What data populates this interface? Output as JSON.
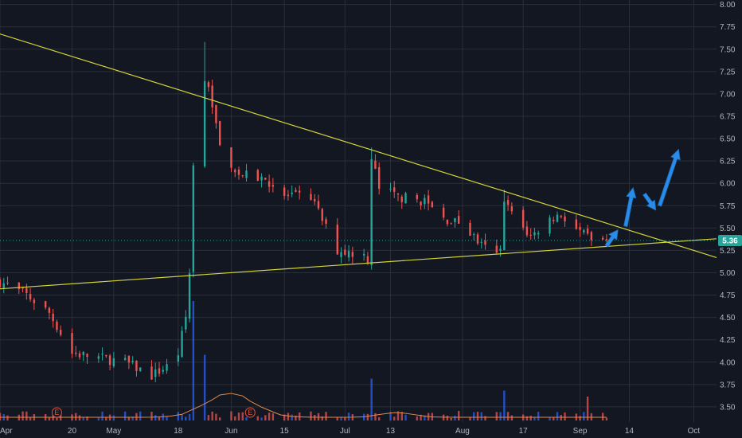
{
  "chart_data": {
    "type": "candlestick",
    "colors": {
      "background": "#131722",
      "grid": "#2a2e39",
      "up": "#26a69a",
      "down": "#ef5350",
      "volume_up": "#2962ff",
      "volume_down": "#ef5350",
      "trendline": "#d4d43a",
      "arrow": "#2a8ce8",
      "last_price": "#26a69a",
      "volume_ma": "#e08a4a"
    },
    "y_axis": {
      "ticks": [
        "8.00",
        "7.75",
        "7.50",
        "7.25",
        "7.00",
        "6.75",
        "6.50",
        "6.25",
        "6.00",
        "5.75",
        "5.50",
        "5.25",
        "5.00",
        "4.75",
        "4.50",
        "4.25",
        "4.00",
        "3.75",
        "3.50"
      ],
      "ylim": [
        3.33,
        8.05
      ]
    },
    "x_axis": {
      "ticks": [
        {
          "label": "Apr",
          "date": "2020-04-01"
        },
        {
          "label": "20",
          "date": "2020-04-20"
        },
        {
          "label": "May",
          "date": "2020-05-01"
        },
        {
          "label": "18",
          "date": "2020-05-18"
        },
        {
          "label": "Jun",
          "date": "2020-06-01"
        },
        {
          "label": "15",
          "date": "2020-06-15"
        },
        {
          "label": "Jul",
          "date": "2020-07-01"
        },
        {
          "label": "13",
          "date": "2020-07-13"
        },
        {
          "label": "Aug",
          "date": "2020-08-01"
        },
        {
          "label": "17",
          "date": "2020-08-17"
        },
        {
          "label": "Sep",
          "date": "2020-09-01"
        },
        {
          "label": "14",
          "date": "2020-09-14"
        },
        {
          "label": "Oct",
          "date": "2020-10-01"
        }
      ],
      "xlim": [
        "2020-04-01",
        "2020-10-07"
      ]
    },
    "last_price": "5.36",
    "trendlines": [
      {
        "name": "resistance",
        "points": [
          [
            "2020-04-01",
            7.67
          ],
          [
            "2020-10-07",
            5.17
          ]
        ]
      },
      {
        "name": "support",
        "points": [
          [
            "2020-04-01",
            4.82
          ],
          [
            "2020-10-07",
            5.38
          ]
        ]
      }
    ],
    "keypoints": [
      [
        "2020-04-01",
        4.9
      ],
      [
        "2020-04-08",
        4.75
      ],
      [
        "2020-04-14",
        4.55
      ],
      [
        "2020-04-20",
        4.1
      ],
      [
        "2020-04-27",
        4.05
      ],
      [
        "2020-05-04",
        4.0
      ],
      [
        "2020-05-11",
        3.85
      ],
      [
        "2020-05-15",
        3.95
      ],
      [
        "2020-05-18",
        4.1
      ],
      [
        "2020-05-20",
        4.5
      ],
      [
        "2020-05-21",
        5.0
      ],
      [
        "2020-05-22",
        6.2
      ],
      [
        "2020-05-25",
        7.2
      ],
      [
        "2020-05-27",
        6.9
      ],
      [
        "2020-05-29",
        6.4
      ],
      [
        "2020-06-03",
        6.1
      ],
      [
        "2020-06-10",
        6.05
      ],
      [
        "2020-06-15",
        5.85
      ],
      [
        "2020-06-22",
        5.85
      ],
      [
        "2020-06-26",
        5.5
      ],
      [
        "2020-06-29",
        5.25
      ],
      [
        "2020-07-06",
        5.2
      ],
      [
        "2020-07-07",
        5.15
      ],
      [
        "2020-07-08",
        6.3
      ],
      [
        "2020-07-10",
        5.95
      ],
      [
        "2020-07-15",
        5.85
      ],
      [
        "2020-07-22",
        5.8
      ],
      [
        "2020-07-27",
        5.6
      ],
      [
        "2020-08-01",
        5.55
      ],
      [
        "2020-08-06",
        5.3
      ],
      [
        "2020-08-10",
        5.2
      ],
      [
        "2020-08-11",
        5.25
      ],
      [
        "2020-08-12",
        5.85
      ],
      [
        "2020-08-14",
        5.65
      ],
      [
        "2020-08-19",
        5.4
      ],
      [
        "2020-08-24",
        5.6
      ],
      [
        "2020-08-27",
        5.65
      ],
      [
        "2020-09-01",
        5.45
      ],
      [
        "2020-09-04",
        5.36
      ],
      [
        "2020-09-08",
        5.36
      ]
    ],
    "spikes": [
      {
        "date": "2020-05-25",
        "high": 7.58
      },
      {
        "date": "2020-07-08",
        "high": 6.4
      },
      {
        "date": "2020-08-12",
        "high": 5.93
      }
    ],
    "volume_spikes": [
      {
        "date": "2020-05-22",
        "value": 1.0
      },
      {
        "date": "2020-05-25",
        "value": 0.55
      },
      {
        "date": "2020-07-08",
        "value": 0.35
      },
      {
        "date": "2020-08-12",
        "value": 0.25
      },
      {
        "date": "2020-09-03",
        "value": 0.2
      }
    ],
    "earnings": [
      {
        "date": "2020-04-16",
        "label": "E"
      },
      {
        "date": "2020-06-06",
        "label": "E"
      }
    ],
    "arrows": [
      {
        "from": [
          "2020-09-08",
          5.3
        ],
        "to": [
          "2020-09-11",
          5.48
        ],
        "end": [
          "2020-09-13",
          5.45
        ]
      },
      {
        "from": [
          "2020-09-13",
          5.52
        ],
        "to": [
          "2020-09-15",
          5.95
        ],
        "end": [
          "2020-09-17",
          5.95
        ]
      },
      {
        "from": [
          "2020-09-18",
          5.88
        ],
        "to": [
          "2020-09-21",
          5.7
        ],
        "end": [
          "2020-09-20",
          5.7
        ]
      },
      {
        "from": [
          "2020-09-22",
          5.75
        ],
        "to": [
          "2020-09-27",
          6.38
        ],
        "end": [
          "2020-09-28",
          6.35
        ]
      }
    ]
  }
}
